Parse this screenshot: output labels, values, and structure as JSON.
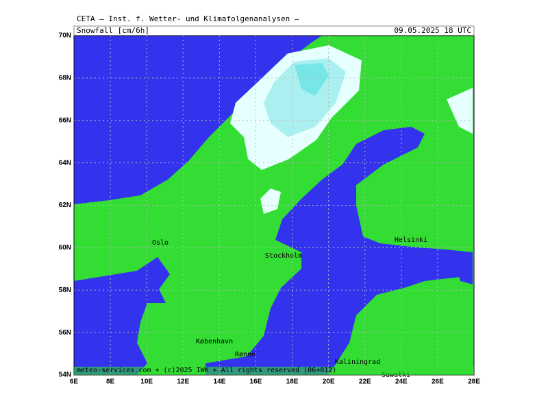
{
  "header": "CETA – Inst. f. Wetter- und Klimafolgenanalysen –",
  "title": "Snowfall [cm/6h]",
  "valid_time": "09.05.2025 18 UTC",
  "lat_labels": [
    "70N",
    "68N",
    "66N",
    "64N",
    "62N",
    "60N",
    "58N",
    "56N",
    "54N"
  ],
  "lon_labels": [
    "6E",
    "8E",
    "10E",
    "12E",
    "14E",
    "16E",
    "18E",
    "20E",
    "22E",
    "24E",
    "26E",
    "28E"
  ],
  "cities": [
    "Oslo",
    "Stockholm",
    "Helsinki",
    "København",
    "Rønne",
    "Kaliningrad",
    "Suwałki"
  ],
  "footer": "meteo-services.com + (c)2025 IWK + All rights reserved (06+012)"
}
